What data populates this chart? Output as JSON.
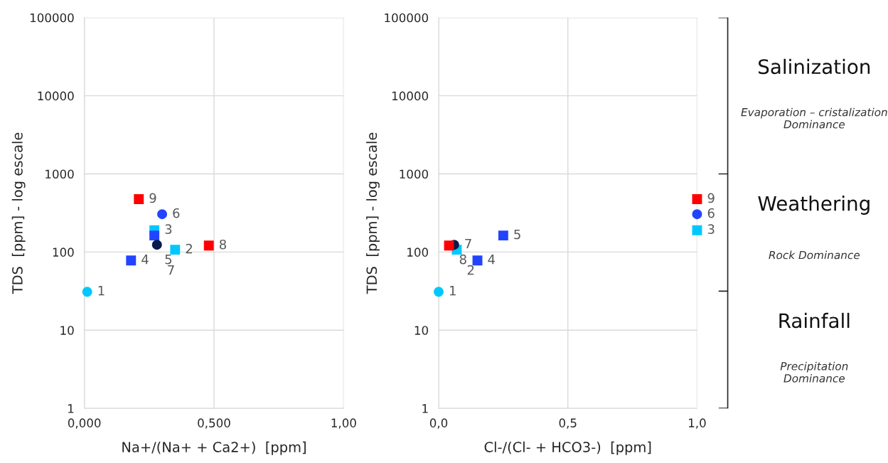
{
  "chart_data": [
    {
      "type": "scatter",
      "xlabel": "Na+/(Na+ + Ca2+)  [ppm]",
      "ylabel": "TDS  [ppm] - log escale",
      "log": "y",
      "grid": true,
      "xlim": [
        0,
        1
      ],
      "xticks": [
        {
          "value": 0,
          "label": "0,000"
        },
        {
          "value": 0.5,
          "label": "0,500"
        },
        {
          "value": 1,
          "label": "1,00"
        }
      ],
      "ylim": [
        1,
        100000
      ],
      "yticks": [
        1,
        10,
        100,
        1000,
        10000,
        100000
      ],
      "series": [
        {
          "color": "#00c8ff",
          "marker": "circle",
          "x": [
            0.011
          ],
          "values": [
            31
          ]
        },
        {
          "color": "#00c8ff",
          "marker": "square",
          "x": [
            0.35
          ],
          "values": [
            107
          ]
        },
        {
          "color": "#00c8ff",
          "marker": "square",
          "x": [
            0.27
          ],
          "values": [
            190
          ]
        },
        {
          "color": "#2244ff",
          "marker": "square",
          "x": [
            0.18
          ],
          "values": [
            78
          ]
        },
        {
          "color": "#2244ff",
          "marker": "square",
          "x": [
            0.27
          ],
          "values": [
            163
          ]
        },
        {
          "color": "#2244ff",
          "marker": "circle",
          "x": [
            0.3
          ],
          "values": [
            305
          ]
        },
        {
          "color": "#0a1a4a",
          "marker": "circle",
          "x": [
            0.28
          ],
          "values": [
            124
          ]
        },
        {
          "color": "#ff0000",
          "marker": "square",
          "x": [
            0.48
          ],
          "values": [
            121
          ]
        },
        {
          "color": "#ff0000",
          "marker": "square",
          "x": [
            0.21
          ],
          "values": [
            475
          ]
        }
      ],
      "annotations": [
        {
          "text": "1",
          "x": 0.011,
          "y": 31
        },
        {
          "text": "2",
          "x": 0.35,
          "y": 107
        },
        {
          "text": "3",
          "x": 0.27,
          "y": 190
        },
        {
          "text": "4",
          "x": 0.18,
          "y": 78
        },
        {
          "text": "5",
          "x": 0.27,
          "y": 163
        },
        {
          "text": "6",
          "x": 0.3,
          "y": 305
        },
        {
          "text": "7",
          "x": 0.28,
          "y": 124
        },
        {
          "text": "8",
          "x": 0.48,
          "y": 121
        },
        {
          "text": "9",
          "x": 0.21,
          "y": 475
        }
      ]
    },
    {
      "type": "scatter",
      "xlabel": "Cl-/(Cl- + HCO3-)  [ppm]",
      "ylabel": "TDS  [ppm] - log escale",
      "log": "y",
      "grid": true,
      "xlim": [
        0,
        1
      ],
      "xticks": [
        {
          "value": 0,
          "label": "0,0"
        },
        {
          "value": 0.5,
          "label": "0,5"
        },
        {
          "value": 1,
          "label": "1,0"
        }
      ],
      "ylim": [
        1,
        100000
      ],
      "yticks": [
        1,
        10,
        100,
        1000,
        10000,
        100000
      ],
      "series": [
        {
          "color": "#00c8ff",
          "marker": "circle",
          "x": [
            0.0
          ],
          "values": [
            31
          ]
        },
        {
          "color": "#00c8ff",
          "marker": "square",
          "x": [
            0.07
          ],
          "values": [
            107
          ]
        },
        {
          "color": "#00c8ff",
          "marker": "square",
          "x": [
            1.0
          ],
          "values": [
            190
          ]
        },
        {
          "color": "#2244ff",
          "marker": "square",
          "x": [
            0.15
          ],
          "values": [
            78
          ]
        },
        {
          "color": "#2244ff",
          "marker": "square",
          "x": [
            0.25
          ],
          "values": [
            163
          ]
        },
        {
          "color": "#2244ff",
          "marker": "circle",
          "x": [
            1.0
          ],
          "values": [
            305
          ]
        },
        {
          "color": "#0a1a4a",
          "marker": "circle",
          "x": [
            0.06
          ],
          "values": [
            124
          ]
        },
        {
          "color": "#ff0000",
          "marker": "square",
          "x": [
            0.04
          ],
          "values": [
            121
          ]
        },
        {
          "color": "#ff0000",
          "marker": "square",
          "x": [
            1.0
          ],
          "values": [
            475
          ]
        }
      ],
      "annotations": [
        {
          "text": "1",
          "x": 0.0,
          "y": 31
        },
        {
          "text": "2",
          "x": 0.07,
          "y": 107
        },
        {
          "text": "3",
          "x": 1.0,
          "y": 190
        },
        {
          "text": "4",
          "x": 0.15,
          "y": 78
        },
        {
          "text": "5",
          "x": 0.25,
          "y": 163
        },
        {
          "text": "6",
          "x": 1.0,
          "y": 305
        },
        {
          "text": "7",
          "x": 0.06,
          "y": 124
        },
        {
          "text": "8",
          "x": 0.04,
          "y": 121
        },
        {
          "text": "9",
          "x": 1.0,
          "y": 475
        }
      ]
    },
    {
      "type": "other",
      "annotations": [
        "Salinization",
        "Evaporation – cristalization\nDominance",
        "Weathering",
        "Rock Dominance",
        "Rainfall",
        "Precipitation\nDominance"
      ]
    }
  ]
}
